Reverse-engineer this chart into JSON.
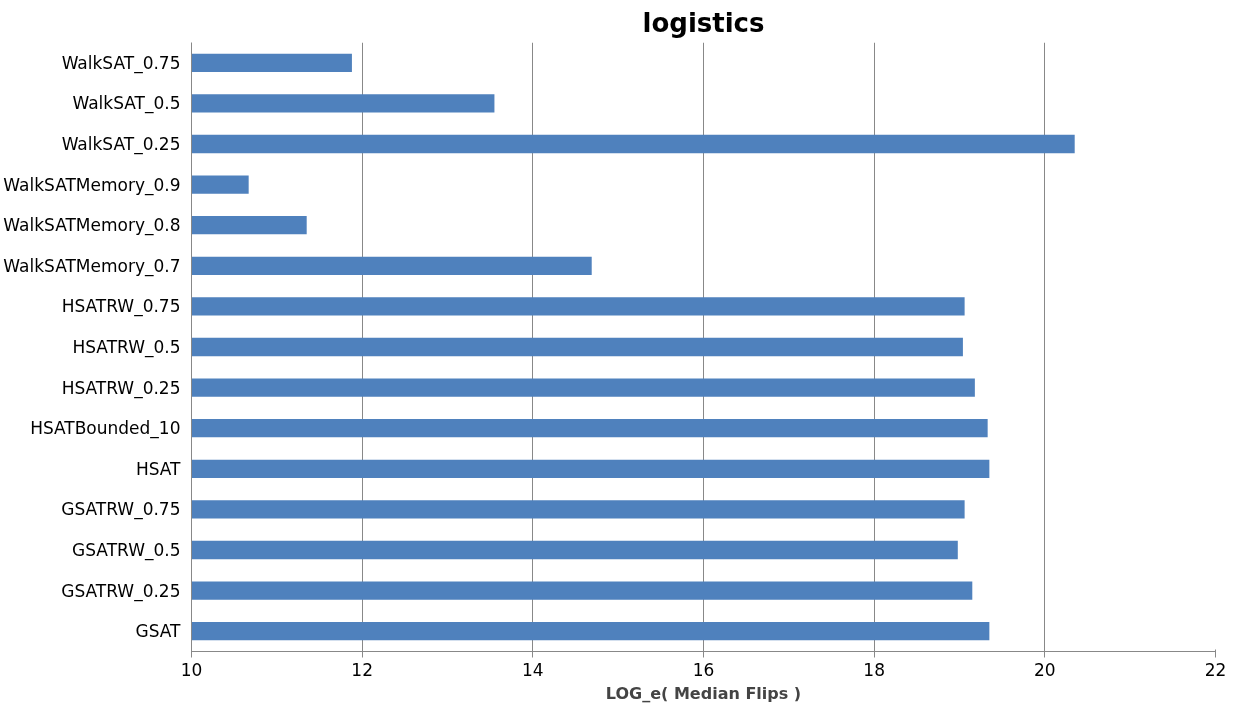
{
  "chart_data": {
    "type": "bar",
    "orientation": "horizontal",
    "title": "logistics",
    "xlabel": "LOG_e( Median Flips )",
    "categories": [
      "WalkSAT_0.75",
      "WalkSAT_0.5",
      "WalkSAT_0.25",
      "WalkSATMemory_0.9",
      "WalkSATMemory_0.8",
      "WalkSATMemory_0.7",
      "HSATRW_0.75",
      "HSATRW_0.5",
      "HSATRW_0.25",
      "HSATBounded_10",
      "HSAT",
      "GSATRW_0.75",
      "GSATRW_0.5",
      "GSATRW_0.25",
      "GSAT"
    ],
    "values": [
      11.88,
      13.55,
      20.35,
      10.67,
      11.35,
      14.69,
      19.06,
      19.04,
      19.18,
      19.33,
      19.35,
      19.06,
      18.98,
      19.15,
      19.35
    ],
    "color": "#4f81bd",
    "xlim": [
      10,
      22
    ],
    "xticks": [
      10,
      12,
      14,
      16,
      18,
      20,
      22
    ],
    "grid": "x"
  }
}
